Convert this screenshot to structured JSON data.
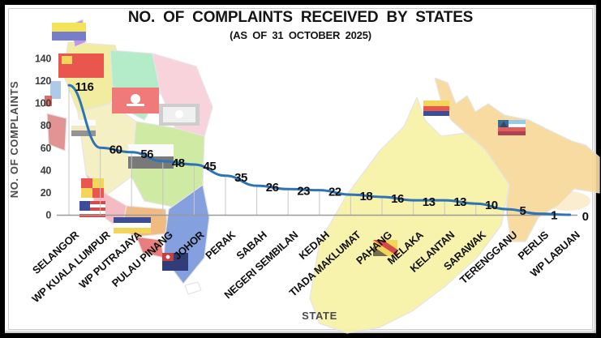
{
  "chart_data": {
    "type": "line",
    "title": "NO. OF COMPLAINTS RECEIVED BY STATES",
    "subtitle": "(AS OF 31 OCTOBER 2025)",
    "xlabel": "STATE",
    "ylabel": "NO. OF COMPLAINTS",
    "categories": [
      "SELANGOR",
      "WP KUALA LUMPUR",
      "WP PUTRAJAYA",
      "PULAU PINANG",
      "JOHOR",
      "PERAK",
      "SABAH",
      "NEGERI SEMBILAN",
      "KEDAH",
      "TIADA MAKLUMAT",
      "PAHANG",
      "MELAKA",
      "KELANTAN",
      "SARAWAK",
      "TERENGGANU",
      "PERLIS",
      "WP LABUAN"
    ],
    "values": [
      116,
      60,
      56,
      48,
      45,
      35,
      26,
      23,
      22,
      18,
      16,
      13,
      13,
      10,
      5,
      1,
      0
    ],
    "yticks": [
      0,
      20,
      40,
      60,
      80,
      100,
      120,
      140
    ],
    "ylim": [
      0,
      140
    ],
    "grid": "vertical drop line from axis to each data point",
    "legend": "none",
    "data_labels_shown": true,
    "line_color": "#2e74b5",
    "dropline_color": "#c6c6c6",
    "axis_color": "#9a9a9a",
    "label_color": "#0d0d0d",
    "background": "pastel map of Malaysia with state flags"
  },
  "map": {
    "description": "Decorative map of Malaysia (Peninsular + Sabah/Sarawak) with small state flags",
    "states": [
      {
        "id": "perlis",
        "name": "Perlis",
        "color": "#bb90dd"
      },
      {
        "id": "kedah",
        "name": "Kedah",
        "color": "#f1eb9a"
      },
      {
        "id": "penang",
        "name": "Pulau Pinang",
        "color": "#e08a8a"
      },
      {
        "id": "kelantan",
        "name": "Kelantan",
        "color": "#aeeac4"
      },
      {
        "id": "terengganu",
        "name": "Terengganu",
        "color": "#f8d0da"
      },
      {
        "id": "perak",
        "name": "Perak",
        "color": "#f5efbf"
      },
      {
        "id": "pahang",
        "name": "Pahang",
        "color": "#cbe99b"
      },
      {
        "id": "selangor",
        "name": "Selangor",
        "color": "#f5b6be"
      },
      {
        "id": "negeri-sembilan",
        "name": "Negeri Sembilan",
        "color": "#efb678"
      },
      {
        "id": "melaka",
        "name": "Melaka",
        "color": "#e87474"
      },
      {
        "id": "johor",
        "name": "Johor",
        "color": "#7b98dc"
      },
      {
        "id": "singapore",
        "name": "Singapore (outline)",
        "color": "#ffffff"
      },
      {
        "id": "sarawak",
        "name": "Sarawak",
        "color": "#f7f1a6"
      },
      {
        "id": "sabah",
        "name": "Sabah",
        "color": "#f8d898"
      }
    ]
  }
}
